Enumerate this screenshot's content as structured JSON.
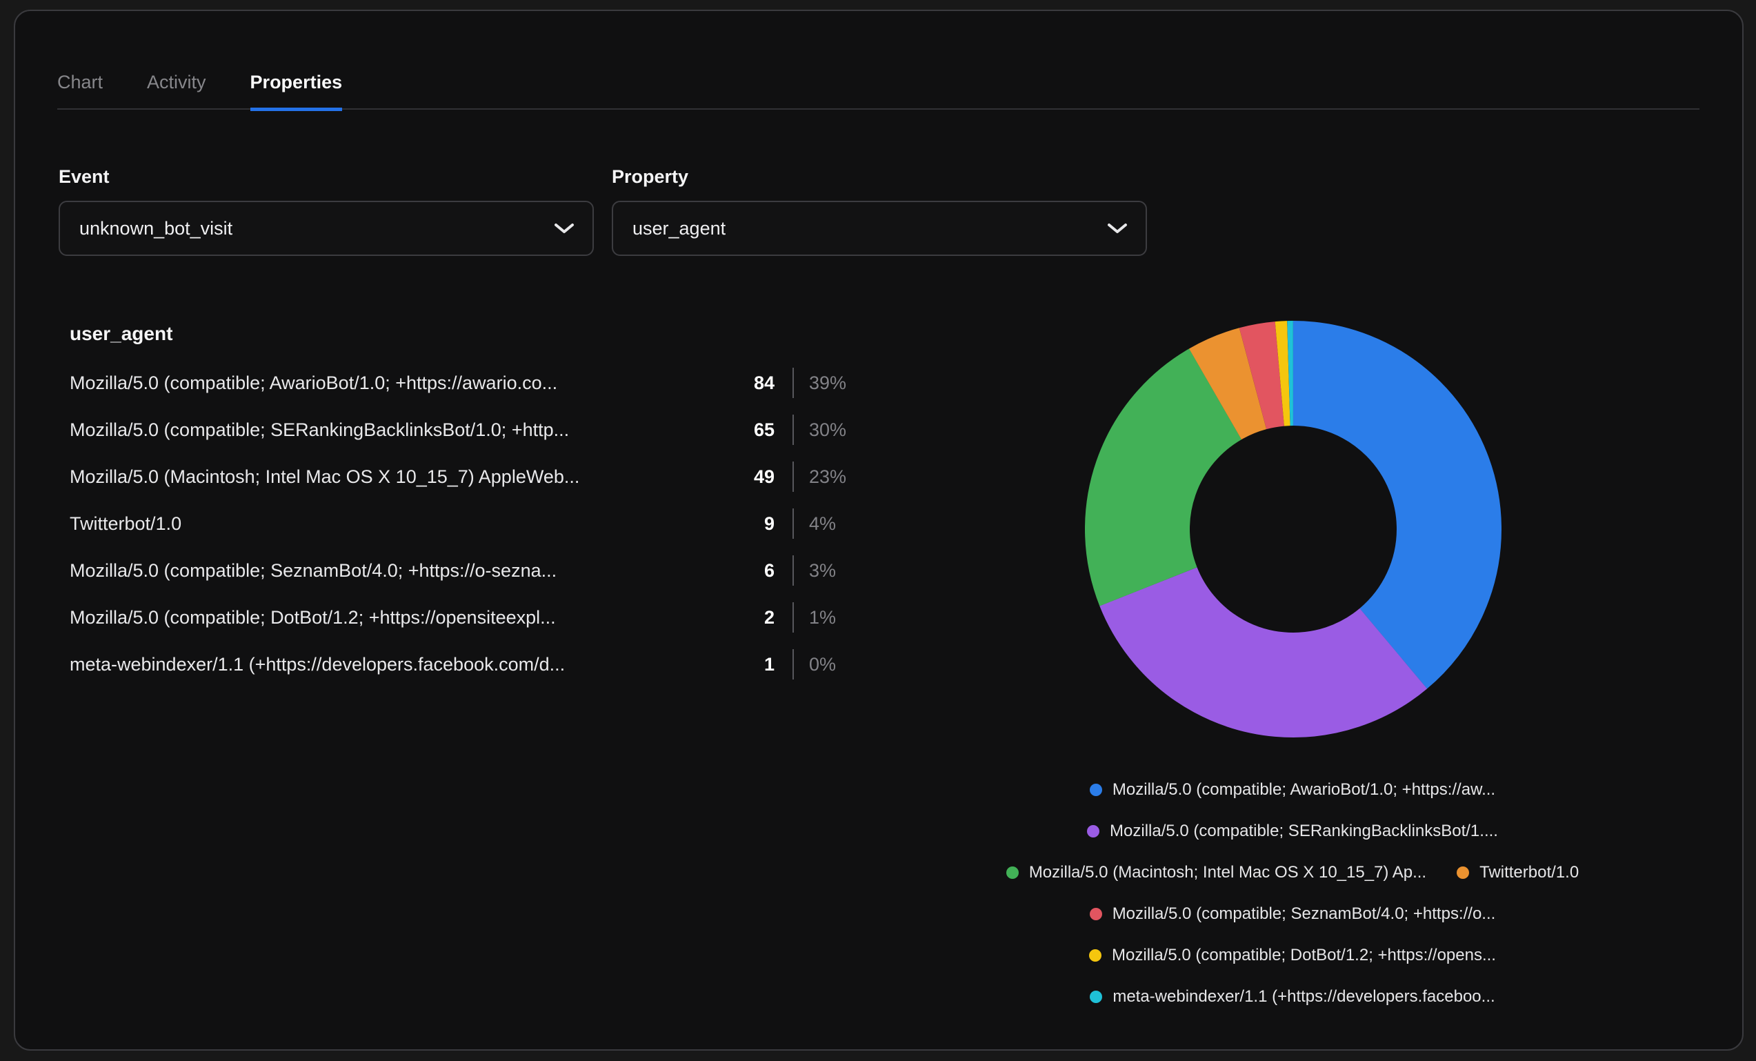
{
  "tabs": [
    {
      "label": "Chart",
      "active": false
    },
    {
      "label": "Activity",
      "active": false
    },
    {
      "label": "Properties",
      "active": true
    }
  ],
  "filters": {
    "event": {
      "label": "Event",
      "value": "unknown_bot_visit"
    },
    "property": {
      "label": "Property",
      "value": "user_agent"
    }
  },
  "breakdown": {
    "title": "user_agent",
    "rows": [
      {
        "label": "Mozilla/5.0 (compatible; AwarioBot/1.0; +https://awario.co...",
        "count": "84",
        "percent": "39%"
      },
      {
        "label": "Mozilla/5.0 (compatible; SERankingBacklinksBot/1.0; +http...",
        "count": "65",
        "percent": "30%"
      },
      {
        "label": "Mozilla/5.0 (Macintosh; Intel Mac OS X 10_15_7) AppleWeb...",
        "count": "49",
        "percent": "23%"
      },
      {
        "label": "Twitterbot/1.0",
        "count": "9",
        "percent": "4%"
      },
      {
        "label": "Mozilla/5.0 (compatible; SeznamBot/4.0; +https://o-sezna...",
        "count": "6",
        "percent": "3%"
      },
      {
        "label": "Mozilla/5.0 (compatible; DotBot/1.2; +https://opensiteexpl...",
        "count": "2",
        "percent": "1%"
      },
      {
        "label": "meta-webindexer/1.1 (+https://developers.facebook.com/d...",
        "count": "1",
        "percent": "0%"
      }
    ]
  },
  "chart_data": {
    "type": "pie",
    "donut": true,
    "title": "user_agent",
    "categories": [
      "Mozilla/5.0 (compatible; AwarioBot/1.0; +https://aw...",
      "Mozilla/5.0 (compatible; SERankingBacklinksBot/1....",
      "Mozilla/5.0 (Macintosh; Intel Mac OS X 10_15_7) Ap...",
      "Twitterbot/1.0",
      "Mozilla/5.0 (compatible; SeznamBot/4.0; +https://o...",
      "Mozilla/5.0 (compatible; DotBot/1.2; +https://opens...",
      "meta-webindexer/1.1 (+https://developers.faceboo..."
    ],
    "values": [
      84,
      65,
      49,
      9,
      6,
      2,
      1
    ],
    "percents": [
      "39%",
      "30%",
      "23%",
      "4%",
      "3%",
      "1%",
      "0%"
    ],
    "colors": [
      "#2b7de9",
      "#9a5ce4",
      "#42b157",
      "#eb9230",
      "#e25560",
      "#f5c60e",
      "#1fc1d8"
    ],
    "start_angle": -90,
    "direction": "clockwise",
    "legend_position": "bottom"
  },
  "ui_colors": {
    "accent": "#2472e8",
    "panel_background": "#101011",
    "page_background": "#181818"
  }
}
